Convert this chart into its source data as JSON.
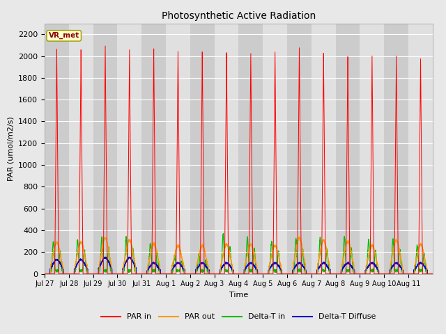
{
  "title": "Photosynthetic Active Radiation",
  "ylabel": "PAR (umol/m2/s)",
  "xlabel": "Time",
  "label_box": "VR_met",
  "ylim": [
    0,
    2300
  ],
  "bg_color": "#e8e8e8",
  "plot_bg_color": "#d4d4d4",
  "legend": [
    "PAR in",
    "PAR out",
    "Delta-T in",
    "Delta-T Diffuse"
  ],
  "legend_colors": [
    "#ff0000",
    "#ff9900",
    "#00bb00",
    "#0000cc"
  ],
  "x_tick_labels": [
    "Jul 27",
    "Jul 28",
    "Jul 29",
    "Jul 30",
    "Jul 31",
    "Aug 1",
    "Aug 2",
    "Aug 3",
    "Aug 4",
    "Aug 5",
    "Aug 6",
    "Aug 7",
    "Aug 8",
    "Aug 9",
    "Aug 10",
    "Aug 11"
  ],
  "num_days": 16,
  "par_in_peaks": [
    2060,
    2060,
    2090,
    2050,
    2060,
    2040,
    2040,
    2040,
    2030,
    2040,
    2090,
    2010,
    2000,
    2000,
    2000,
    1980
  ],
  "par_out_peaks": [
    290,
    290,
    330,
    310,
    280,
    260,
    260,
    270,
    270,
    260,
    330,
    310,
    300,
    260,
    310,
    270
  ],
  "delta_t_in_peaks": [
    300,
    310,
    340,
    330,
    280,
    170,
    175,
    360,
    330,
    300,
    320,
    330,
    340,
    310,
    320,
    260
  ],
  "delta_t_diffuse_base": [
    130,
    130,
    150,
    150,
    100,
    100,
    100,
    100,
    100,
    100,
    100,
    100,
    100,
    100,
    100,
    100
  ]
}
